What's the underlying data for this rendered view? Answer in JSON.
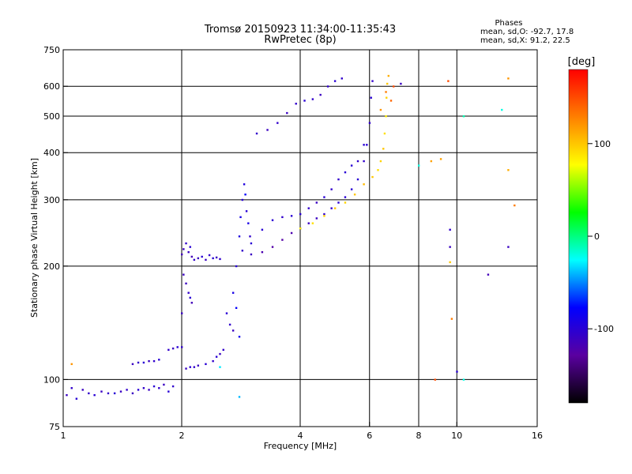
{
  "title_line1": "Tromsø 20150923 11:34:00-11:35:43",
  "title_line2": "RwPretec (8p)",
  "info": {
    "heading": "Phases",
    "line_o": "mean, sd,O: -92.7, 17.8",
    "line_x": "mean, sd,X:  91.2, 22.5"
  },
  "colorbar": {
    "unit": "[deg]",
    "ticks": [
      {
        "value": 100,
        "label": "100"
      },
      {
        "value": 0,
        "label": "0"
      },
      {
        "value": -100,
        "label": "-100"
      }
    ],
    "range": [
      -180,
      180
    ],
    "stops": [
      "#000000",
      "#5a00a0",
      "#0000ff",
      "#00ffff",
      "#00ff00",
      "#ffff00",
      "#ff8000",
      "#ff0000"
    ]
  },
  "chart_data": {
    "type": "scatter",
    "xlabel": "Frequency [MHz]",
    "ylabel": "Stationary phase Virtual Height [km]",
    "x_scale": "log",
    "y_scale": "log",
    "xlim": [
      1,
      16
    ],
    "ylim": [
      75,
      750
    ],
    "x_ticks": [
      {
        "value": 1,
        "label": "1"
      },
      {
        "value": 2,
        "label": "2"
      },
      {
        "value": 4,
        "label": "4"
      },
      {
        "value": 6,
        "label": "6"
      },
      {
        "value": 8,
        "label": "8"
      },
      {
        "value": 10,
        "label": "10"
      },
      {
        "value": 16,
        "label": "16"
      }
    ],
    "y_ticks": [
      {
        "value": 75,
        "label": "75"
      },
      {
        "value": 100,
        "label": "100"
      },
      {
        "value": 200,
        "label": "200"
      },
      {
        "value": 300,
        "label": "300"
      },
      {
        "value": 400,
        "label": "400"
      },
      {
        "value": 500,
        "label": "500"
      },
      {
        "value": 600,
        "label": "600"
      },
      {
        "value": 750,
        "label": "750"
      }
    ],
    "x_grid": [
      2,
      4,
      6,
      8,
      10
    ],
    "y_grid": [
      100,
      200,
      300,
      400,
      500,
      600
    ],
    "grid": true,
    "series": [
      {
        "values": [
          [
            1.02,
            91,
            -110
          ],
          [
            1.05,
            95,
            -105
          ],
          [
            1.08,
            89,
            -100
          ],
          [
            1.12,
            94,
            -110
          ],
          [
            1.16,
            92,
            -105
          ],
          [
            1.2,
            91,
            -100
          ],
          [
            1.25,
            93,
            -110
          ],
          [
            1.3,
            92,
            -105
          ],
          [
            1.35,
            92,
            -100
          ],
          [
            1.4,
            93,
            -110
          ],
          [
            1.45,
            94,
            -105
          ],
          [
            1.5,
            92,
            -110
          ],
          [
            1.55,
            94,
            -100
          ],
          [
            1.6,
            95,
            -105
          ],
          [
            1.65,
            94,
            -110
          ],
          [
            1.7,
            96,
            -100
          ],
          [
            1.75,
            95,
            -105
          ],
          [
            1.8,
            97,
            -110
          ],
          [
            1.85,
            93,
            -100
          ],
          [
            1.9,
            96,
            -105
          ]
        ]
      },
      {
        "values": [
          [
            1.5,
            110,
            -110
          ],
          [
            1.55,
            111,
            -105
          ],
          [
            1.6,
            111,
            -100
          ],
          [
            1.65,
            112,
            -110
          ],
          [
            1.7,
            112,
            -105
          ],
          [
            1.75,
            113,
            -100
          ],
          [
            1.85,
            120,
            -105
          ],
          [
            1.9,
            121,
            -110
          ],
          [
            1.95,
            122,
            -100
          ],
          [
            2.0,
            122,
            -105
          ],
          [
            2.05,
            107,
            -110
          ],
          [
            2.1,
            108,
            -100
          ],
          [
            2.15,
            108,
            -105
          ],
          [
            2.2,
            109,
            -110
          ],
          [
            2.3,
            110,
            -100
          ],
          [
            2.4,
            112,
            -105
          ],
          [
            2.45,
            115,
            -100
          ],
          [
            2.5,
            117,
            -110
          ],
          [
            2.55,
            120,
            -105
          ]
        ]
      },
      {
        "values": [
          [
            2.0,
            215,
            -115
          ],
          [
            2.02,
            222,
            -110
          ],
          [
            2.05,
            230,
            -105
          ],
          [
            2.08,
            218,
            -110
          ],
          [
            2.1,
            225,
            -100
          ],
          [
            2.12,
            212,
            -115
          ],
          [
            2.15,
            208,
            -105
          ],
          [
            2.2,
            210,
            -110
          ],
          [
            2.25,
            212,
            -100
          ],
          [
            2.3,
            208,
            -110
          ],
          [
            2.35,
            214,
            -105
          ],
          [
            2.4,
            210,
            -100
          ],
          [
            2.45,
            211,
            -110
          ],
          [
            2.5,
            209,
            -105
          ],
          [
            2.05,
            180,
            -110
          ],
          [
            2.08,
            170,
            -105
          ],
          [
            2.1,
            165,
            -100
          ],
          [
            2.02,
            190,
            -110
          ],
          [
            2.12,
            160,
            -115
          ],
          [
            2.0,
            150,
            -110
          ]
        ]
      },
      {
        "values": [
          [
            2.6,
            150,
            -100
          ],
          [
            2.65,
            140,
            -105
          ],
          [
            2.7,
            135,
            -110
          ],
          [
            2.75,
            200,
            -100
          ],
          [
            2.8,
            240,
            -95
          ],
          [
            2.82,
            270,
            -90
          ],
          [
            2.85,
            300,
            -100
          ],
          [
            2.88,
            330,
            -95
          ],
          [
            2.9,
            310,
            -80
          ],
          [
            2.92,
            280,
            -100
          ],
          [
            2.95,
            260,
            -90
          ],
          [
            2.98,
            240,
            -105
          ],
          [
            2.7,
            170,
            -90
          ],
          [
            2.75,
            155,
            -80
          ],
          [
            2.8,
            130,
            -85
          ]
        ]
      },
      {
        "values": [
          [
            2.85,
            220,
            -105
          ],
          [
            3.0,
            215,
            -110
          ],
          [
            3.2,
            218,
            -120
          ],
          [
            3.4,
            225,
            -125
          ],
          [
            3.6,
            235,
            -125
          ],
          [
            3.8,
            245,
            -120
          ],
          [
            4.0,
            252,
            -115
          ],
          [
            4.2,
            260,
            -110
          ],
          [
            4.4,
            268,
            -110
          ],
          [
            4.6,
            275,
            -105
          ],
          [
            4.8,
            285,
            -105
          ],
          [
            5.0,
            295,
            -100
          ],
          [
            5.2,
            305,
            -100
          ],
          [
            5.4,
            320,
            -100
          ],
          [
            5.6,
            340,
            -100
          ],
          [
            5.8,
            380,
            -105
          ],
          [
            5.9,
            420,
            -100
          ],
          [
            6.0,
            480,
            -105
          ],
          [
            6.05,
            560,
            -100
          ],
          [
            6.1,
            620,
            -105
          ]
        ]
      },
      {
        "values": [
          [
            3.0,
            230,
            -100
          ],
          [
            3.2,
            250,
            -100
          ],
          [
            3.4,
            265,
            -100
          ],
          [
            3.6,
            270,
            -105
          ],
          [
            3.8,
            272,
            -100
          ],
          [
            4.0,
            275,
            -100
          ],
          [
            4.2,
            285,
            -105
          ],
          [
            4.4,
            295,
            -110
          ],
          [
            4.6,
            305,
            -100
          ],
          [
            4.8,
            320,
            -105
          ],
          [
            5.0,
            340,
            -105
          ],
          [
            5.2,
            355,
            -100
          ],
          [
            5.4,
            370,
            -100
          ],
          [
            5.6,
            380,
            -105
          ],
          [
            5.8,
            420,
            -100
          ]
        ]
      },
      {
        "values": [
          [
            3.1,
            450,
            -105
          ],
          [
            3.3,
            460,
            -110
          ],
          [
            3.5,
            480,
            -105
          ],
          [
            3.7,
            510,
            -110
          ],
          [
            3.9,
            540,
            -105
          ],
          [
            4.1,
            550,
            -100
          ],
          [
            4.3,
            555,
            -105
          ],
          [
            4.5,
            570,
            -110
          ],
          [
            4.7,
            600,
            -105
          ],
          [
            4.9,
            620,
            -100
          ],
          [
            5.1,
            630,
            -105
          ]
        ]
      },
      {
        "values": [
          [
            4.0,
            252,
            85
          ],
          [
            4.3,
            260,
            90
          ],
          [
            4.6,
            272,
            95
          ],
          [
            4.9,
            285,
            100
          ],
          [
            5.2,
            295,
            95
          ],
          [
            5.5,
            310,
            100
          ],
          [
            5.8,
            330,
            105
          ],
          [
            6.1,
            345,
            100
          ],
          [
            6.3,
            360,
            90
          ],
          [
            6.4,
            380,
            95
          ],
          [
            6.5,
            410,
            100
          ],
          [
            6.55,
            450,
            90
          ],
          [
            6.6,
            500,
            85
          ],
          [
            6.62,
            560,
            95
          ],
          [
            6.65,
            610,
            100
          ],
          [
            6.7,
            640,
            110
          ],
          [
            6.4,
            520,
            120
          ],
          [
            6.6,
            580,
            130
          ],
          [
            6.8,
            550,
            140
          ],
          [
            6.9,
            600,
            150
          ]
        ]
      },
      {
        "values": [
          [
            8.6,
            380,
            115
          ],
          [
            9.1,
            385,
            115
          ],
          [
            9.5,
            620,
            150
          ],
          [
            9.6,
            205,
            100
          ],
          [
            9.7,
            145,
            130
          ],
          [
            8.8,
            100,
            150
          ],
          [
            13.5,
            630,
            120
          ],
          [
            13.5,
            360,
            110
          ],
          [
            14.0,
            290,
            130
          ],
          [
            9.6,
            250,
            -105
          ],
          [
            9.6,
            225,
            -110
          ],
          [
            10.0,
            105,
            -100
          ],
          [
            10.4,
            500,
            -10
          ],
          [
            10.4,
            100,
            -20
          ],
          [
            12.0,
            190,
            -115
          ],
          [
            13.0,
            520,
            -20
          ],
          [
            13.5,
            225,
            -110
          ],
          [
            7.2,
            610,
            -110
          ],
          [
            8.0,
            370,
            -20
          ],
          [
            2.8,
            90,
            -40
          ],
          [
            2.5,
            108,
            -30
          ],
          [
            1.05,
            110,
            120
          ]
        ]
      }
    ]
  }
}
